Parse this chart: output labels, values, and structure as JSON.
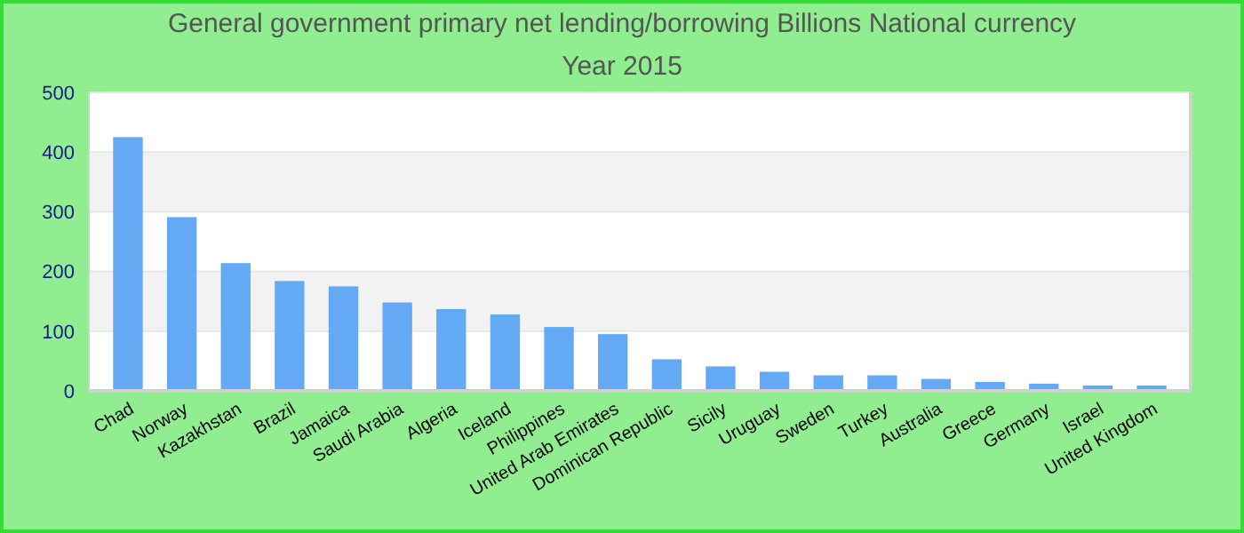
{
  "chart_data": {
    "type": "bar",
    "title": "General government primary net lending/borrowing Billions National currency",
    "subtitle": "Year 2015",
    "categories": [
      "Chad",
      "Norway",
      "Kazakhstan",
      "Brazil",
      "Jamaica",
      "Saudi Arabia",
      "Algeria",
      "Iceland",
      "Philippines",
      "United Arab Emirates",
      "Dominican Republic",
      "Sicily",
      "Uruguay",
      "Sweden",
      "Turkey",
      "Australia",
      "Greece",
      "Germany",
      "Israel",
      "United Kingdom"
    ],
    "values": [
      425,
      291,
      214,
      184,
      175,
      148,
      137,
      128,
      107,
      95,
      53,
      41,
      32,
      26,
      26,
      20,
      15,
      12,
      9,
      9
    ],
    "color": "#63a9f4",
    "ylim": [
      0,
      500
    ],
    "yticks": [
      0,
      100,
      200,
      300,
      400,
      500
    ],
    "grid": "y"
  }
}
